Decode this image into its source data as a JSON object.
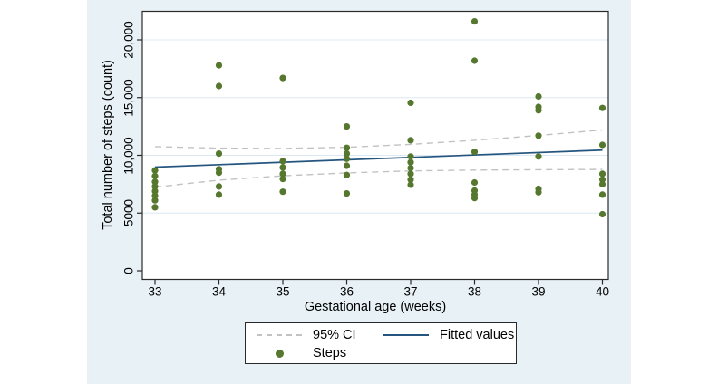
{
  "figure": {
    "bg": "#e8f1f5",
    "plot_bg": "#ffffff",
    "grid_color": "#dce8f1",
    "axis_color": "#2a2a2a"
  },
  "chart_data": {
    "type": "scatter",
    "title": "",
    "xlabel": "Gestational age (weeks)",
    "ylabel": "Total number of steps (count)",
    "x_ticks": [
      33,
      34,
      35,
      36,
      37,
      38,
      39,
      40
    ],
    "x_tick_labels": [
      "33",
      "34",
      "35",
      "36",
      "37",
      "38",
      "39",
      "40"
    ],
    "y_ticks": [
      0,
      5000,
      10000,
      15000,
      20000
    ],
    "y_tick_labels": [
      "0",
      "5000",
      "10,000",
      "15,000",
      "20,000"
    ],
    "xlim": [
      32.8,
      40.1
    ],
    "ylim": [
      0,
      22500
    ],
    "grid": true,
    "legend_position": "bottom-center",
    "series": [
      {
        "name": "Steps",
        "type": "scatter",
        "color": "#55772e",
        "points": [
          [
            33,
            8700
          ],
          [
            33,
            8200
          ],
          [
            33,
            7700
          ],
          [
            33,
            7300
          ],
          [
            33,
            6900
          ],
          [
            33,
            6500
          ],
          [
            33,
            6100
          ],
          [
            33,
            5500
          ],
          [
            34,
            17800
          ],
          [
            34,
            16000
          ],
          [
            34,
            10150
          ],
          [
            34,
            8800
          ],
          [
            34,
            8500
          ],
          [
            34,
            7300
          ],
          [
            34,
            6600
          ],
          [
            35,
            16700
          ],
          [
            35,
            9500
          ],
          [
            35,
            8950
          ],
          [
            35,
            8400
          ],
          [
            35,
            7950
          ],
          [
            35,
            6850
          ],
          [
            36,
            12500
          ],
          [
            36,
            10650
          ],
          [
            36,
            10150
          ],
          [
            36,
            9700
          ],
          [
            36,
            9100
          ],
          [
            36,
            8300
          ],
          [
            36,
            6700
          ],
          [
            37,
            14550
          ],
          [
            37,
            11300
          ],
          [
            37,
            9900
          ],
          [
            37,
            9400
          ],
          [
            37,
            8900
          ],
          [
            37,
            8400
          ],
          [
            37,
            7900
          ],
          [
            37,
            7450
          ],
          [
            38,
            21600
          ],
          [
            38,
            18200
          ],
          [
            38,
            10300
          ],
          [
            38,
            7650
          ],
          [
            38,
            6950
          ],
          [
            38,
            6600
          ],
          [
            38,
            6300
          ],
          [
            39,
            15100
          ],
          [
            39,
            14200
          ],
          [
            39,
            13900
          ],
          [
            39,
            11700
          ],
          [
            39,
            9900
          ],
          [
            39,
            7100
          ],
          [
            39,
            6800
          ],
          [
            40,
            14100
          ],
          [
            40,
            10900
          ],
          [
            40,
            8400
          ],
          [
            40,
            7900
          ],
          [
            40,
            7500
          ],
          [
            40,
            6600
          ],
          [
            40,
            4900
          ]
        ]
      },
      {
        "name": "Fitted values",
        "type": "line",
        "color": "#24557f",
        "points": [
          [
            33,
            8980
          ],
          [
            40,
            10450
          ]
        ]
      },
      {
        "name": "95% CI",
        "type": "band-dashed",
        "color": "#c2c2c2",
        "x": [
          33,
          34,
          35,
          36,
          37,
          38,
          39,
          40
        ],
        "upper": [
          10750,
          10620,
          10600,
          10700,
          10950,
          11300,
          11720,
          12200
        ],
        "lower": [
          7250,
          7850,
          8230,
          8480,
          8650,
          8720,
          8750,
          8780
        ]
      }
    ]
  },
  "legend": {
    "entries": [
      {
        "label": "95% CI",
        "swatch": "dashed-line"
      },
      {
        "label": "Fitted values",
        "swatch": "solid-line"
      },
      {
        "label": "Steps",
        "swatch": "dot"
      }
    ]
  }
}
